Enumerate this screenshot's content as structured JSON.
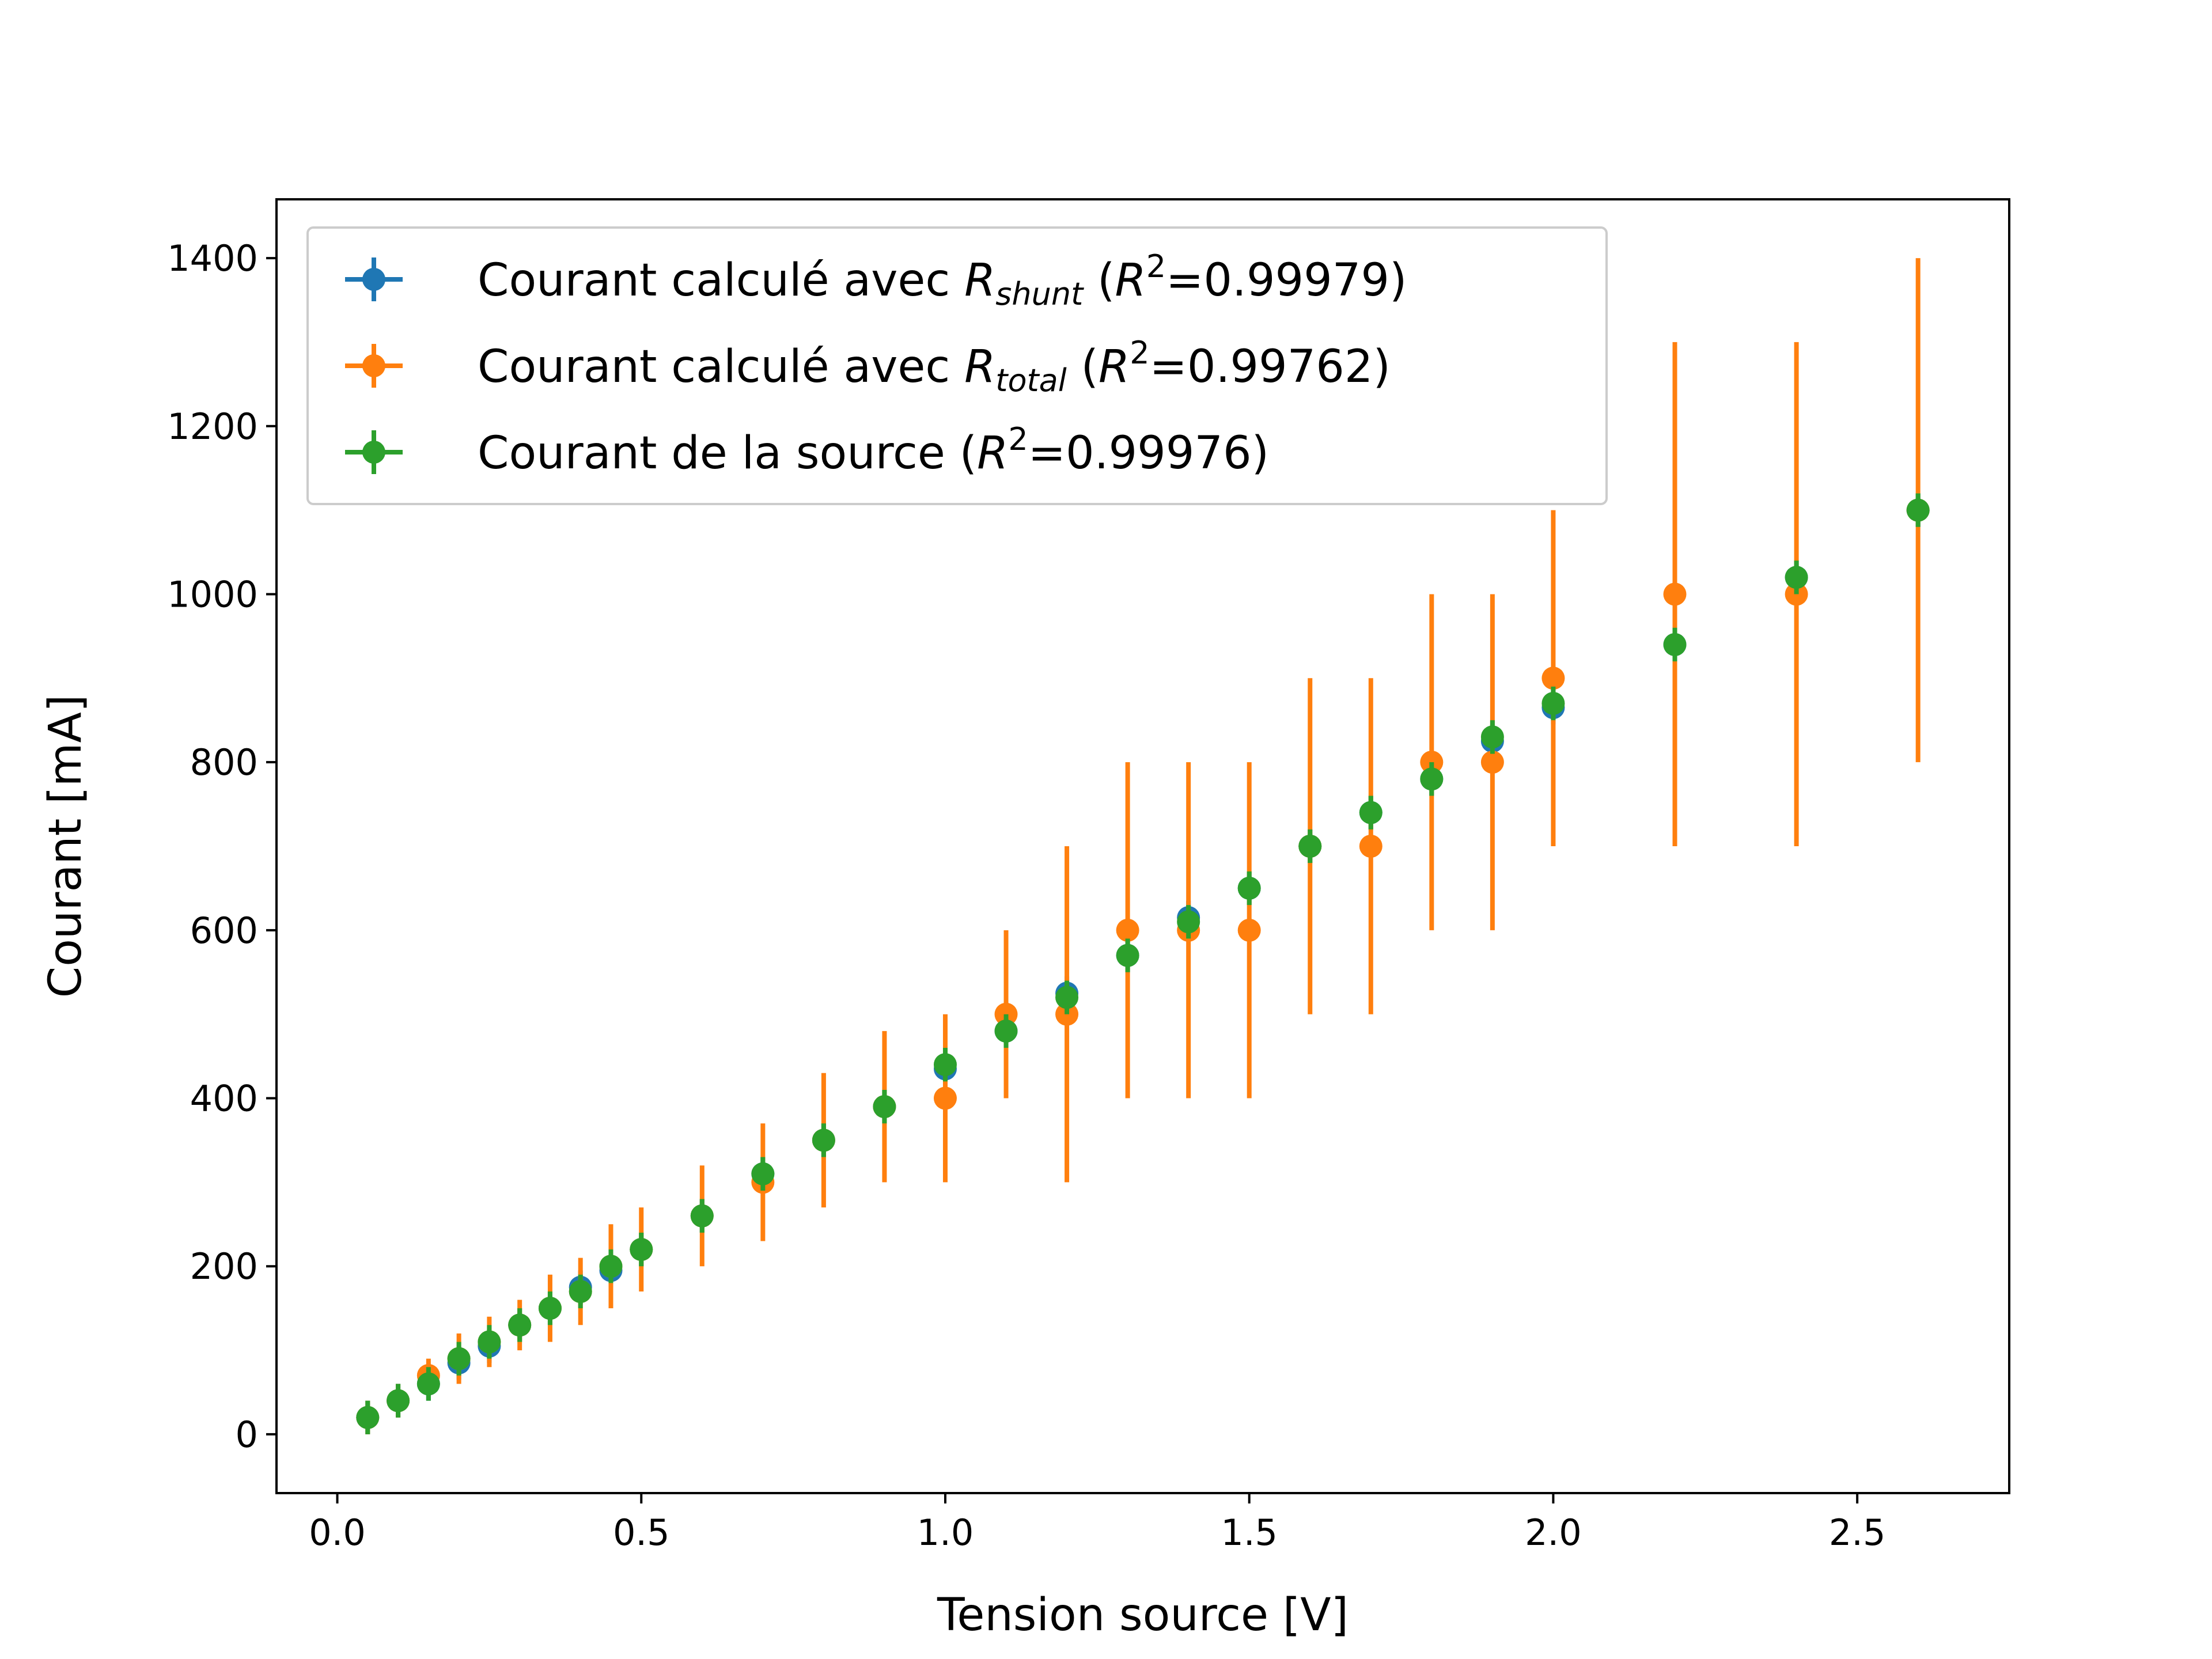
{
  "chart_data": {
    "type": "scatter",
    "xlabel": "Tension source [V]",
    "ylabel": "Courant [mA]",
    "xlim": [
      -0.1,
      2.75
    ],
    "ylim": [
      -70,
      1470
    ],
    "xticks": [
      0.0,
      0.5,
      1.0,
      1.5,
      2.0,
      2.5
    ],
    "xtick_labels": [
      "0.0",
      "0.5",
      "1.0",
      "1.5",
      "2.0",
      "2.5"
    ],
    "yticks": [
      0,
      200,
      400,
      600,
      800,
      1000,
      1200,
      1400
    ],
    "ytick_labels": [
      "0",
      "200",
      "400",
      "600",
      "800",
      "1000",
      "1200",
      "1400"
    ],
    "grid": false,
    "legend_position": "top-left",
    "series": [
      {
        "name": "Courant calculé avec R_shunt (R^2=0.99979)",
        "legend": {
          "base": "Courant calculé avec ",
          "symbol": "R",
          "sub": "shunt",
          "r2": "0.99979"
        },
        "color": "#1f77b4",
        "x": [
          0.05,
          0.1,
          0.15,
          0.2,
          0.25,
          0.3,
          0.35,
          0.4,
          0.45,
          0.5,
          0.6,
          0.7,
          0.8,
          0.9,
          1.0,
          1.1,
          1.2,
          1.3,
          1.4,
          1.5,
          1.6,
          1.7,
          1.8,
          1.9,
          2.0,
          2.2,
          2.4,
          2.6
        ],
        "y": [
          20,
          40,
          60,
          85,
          105,
          130,
          150,
          175,
          195,
          220,
          260,
          310,
          350,
          390,
          435,
          480,
          525,
          570,
          615,
          650,
          700,
          740,
          780,
          825,
          865,
          940,
          1020,
          1100
        ],
        "yerr": [
          20,
          20,
          20,
          20,
          20,
          20,
          20,
          20,
          20,
          20,
          20,
          20,
          20,
          20,
          20,
          20,
          20,
          20,
          20,
          20,
          20,
          20,
          20,
          20,
          20,
          20,
          20,
          20
        ]
      },
      {
        "name": "Courant calculé avec R_total (R^2=0.99762)",
        "legend": {
          "base": "Courant calculé avec ",
          "symbol": "R",
          "sub": "total",
          "r2": "0.99762"
        },
        "color": "#ff7f0e",
        "x": [
          0.05,
          0.1,
          0.15,
          0.2,
          0.25,
          0.3,
          0.35,
          0.4,
          0.45,
          0.5,
          0.6,
          0.7,
          0.8,
          0.9,
          1.0,
          1.1,
          1.2,
          1.3,
          1.4,
          1.5,
          1.6,
          1.7,
          1.8,
          1.9,
          2.0,
          2.2,
          2.4,
          2.6
        ],
        "y": [
          20,
          40,
          70,
          90,
          110,
          130,
          150,
          170,
          200,
          220,
          260,
          300,
          350,
          390,
          400,
          500,
          500,
          600,
          600,
          600,
          700,
          700,
          800,
          800,
          900,
          1000,
          1000,
          1100
        ],
        "yerr": [
          20,
          20,
          20,
          30,
          30,
          30,
          40,
          40,
          50,
          50,
          60,
          70,
          80,
          90,
          100,
          100,
          200,
          200,
          200,
          200,
          200,
          200,
          200,
          200,
          200,
          300,
          300,
          300
        ]
      },
      {
        "name": "Courant de la source (R^2=0.99976)",
        "legend": {
          "base": "Courant de la source ",
          "symbol": "",
          "sub": "",
          "r2": "0.99976"
        },
        "color": "#2ca02c",
        "x": [
          0.05,
          0.1,
          0.15,
          0.2,
          0.25,
          0.3,
          0.35,
          0.4,
          0.45,
          0.5,
          0.6,
          0.7,
          0.8,
          0.9,
          1.0,
          1.1,
          1.2,
          1.3,
          1.4,
          1.5,
          1.6,
          1.7,
          1.8,
          1.9,
          2.0,
          2.2,
          2.4,
          2.6
        ],
        "y": [
          20,
          40,
          60,
          90,
          110,
          130,
          150,
          170,
          200,
          220,
          260,
          310,
          350,
          390,
          440,
          480,
          520,
          570,
          610,
          650,
          700,
          740,
          780,
          830,
          870,
          940,
          1020,
          1100
        ],
        "yerr": [
          20,
          20,
          20,
          20,
          20,
          20,
          20,
          20,
          20,
          20,
          20,
          20,
          20,
          20,
          20,
          20,
          20,
          20,
          20,
          20,
          20,
          20,
          20,
          20,
          20,
          20,
          20,
          20
        ]
      }
    ]
  }
}
